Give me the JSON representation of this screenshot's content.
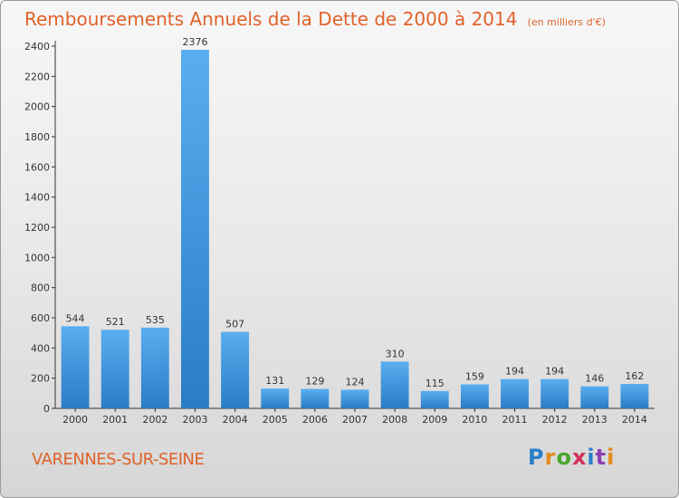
{
  "header": {
    "title": "Remboursements Annuels de la Dette de 2000 à 2014",
    "unit": "(en milliers d'€)"
  },
  "footer": {
    "commune": "VARENNES-SUR-SEINE",
    "logo_letters": [
      "P",
      "r",
      "o",
      "x",
      "i",
      "t",
      "i"
    ]
  },
  "chart_data": {
    "type": "bar",
    "title": "Remboursements Annuels de la Dette de 2000 à 2014",
    "subtitle": "(en milliers d'€)",
    "categories": [
      "2000",
      "2001",
      "2002",
      "2003",
      "2004",
      "2005",
      "2006",
      "2007",
      "2008",
      "2009",
      "2010",
      "2011",
      "2012",
      "2013",
      "2014"
    ],
    "values": [
      544,
      521,
      535,
      2376,
      507,
      131,
      129,
      124,
      310,
      115,
      159,
      194,
      194,
      146,
      162
    ],
    "xlabel": "",
    "ylabel": "",
    "ylim": [
      0,
      2400
    ],
    "yticks": [
      0,
      200,
      400,
      600,
      800,
      1000,
      1200,
      1400,
      1600,
      1800,
      2000,
      2200,
      2400
    ],
    "bar_color": "#3b93d8",
    "grid": false,
    "legend": "none"
  }
}
